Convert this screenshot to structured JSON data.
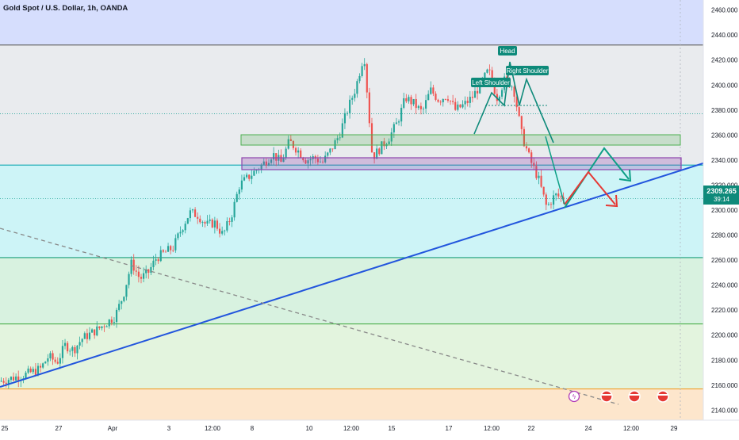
{
  "header": {
    "title": "Gold Spot / U.S. Dollar, 1h, OANDA"
  },
  "price_label": {
    "price": "2309.265",
    "countdown": "39:14"
  },
  "colors": {
    "zone_top": "#d6defd",
    "zone_upper": "#e9ebee",
    "zone_cyan": "#cdf4f7",
    "zone_green": "#d8f2e0",
    "zone_lightgreen": "#e3f4de",
    "zone_orange": "#fde6cc",
    "line_top": "#6b6b6b",
    "line_cyan": "#22b0b8",
    "line_green": "#1a9e7a",
    "line_lightgreen": "#4cae4c",
    "line_orange": "#f0a030",
    "trendline": "#2255dd",
    "dashed_line": "#888888",
    "up_candle": "#26a69a",
    "down_candle": "#ef5350",
    "supply_box": "#8e44ad",
    "demand_box": "#4caf50",
    "arrow_green": "#0e9f86",
    "arrow_red": "#e53935",
    "price_label_bg": "#0e8a7a",
    "annotation_bg": "#0e8a7a"
  },
  "chart_data": {
    "type": "candlestick",
    "title": "Gold Spot / U.S. Dollar, 1h, OANDA",
    "y_ticks": [
      "2140.000",
      "2160.000",
      "2180.000",
      "2200.000",
      "2220.000",
      "2240.000",
      "2260.000",
      "2280.000",
      "2300.000",
      "2320.000",
      "2340.000",
      "2360.000",
      "2380.000",
      "2400.000",
      "2420.000",
      "2440.000",
      "2460.000"
    ],
    "x_ticks": [
      "25",
      "27",
      "Apr",
      "3",
      "12:00",
      "8",
      "10",
      "12:00",
      "15",
      "17",
      "12:00",
      "22",
      "24",
      "12:00",
      "29"
    ],
    "ylim": [
      2132,
      2468
    ],
    "last_price": 2309.265,
    "price_path": [
      [
        0,
        2163
      ],
      [
        3,
        2168
      ],
      [
        5,
        2173
      ],
      [
        6,
        2183
      ],
      [
        7,
        2178
      ],
      [
        8,
        2192
      ],
      [
        9,
        2188
      ],
      [
        10,
        2197
      ],
      [
        12,
        2205
      ],
      [
        14,
        2215
      ],
      [
        15,
        2232
      ],
      [
        16,
        2258
      ],
      [
        17,
        2245
      ],
      [
        18,
        2250
      ],
      [
        19,
        2262
      ],
      [
        21,
        2270
      ],
      [
        22,
        2285
      ],
      [
        23,
        2298
      ],
      [
        24,
        2296
      ],
      [
        25,
        2288
      ],
      [
        26,
        2290
      ],
      [
        27,
        2280
      ],
      [
        28,
        2295
      ],
      [
        29,
        2320
      ],
      [
        31,
        2332
      ],
      [
        32,
        2338
      ],
      [
        33,
        2345
      ],
      [
        34,
        2338
      ],
      [
        35,
        2355
      ],
      [
        36,
        2348
      ],
      [
        37,
        2340
      ],
      [
        38,
        2342
      ],
      [
        39,
        2338
      ],
      [
        40,
        2348
      ],
      [
        41,
        2360
      ],
      [
        42,
        2380
      ],
      [
        43,
        2398
      ],
      [
        44,
        2425
      ],
      [
        45,
        2342
      ],
      [
        46,
        2350
      ],
      [
        47,
        2358
      ],
      [
        48,
        2370
      ],
      [
        49,
        2390
      ],
      [
        50,
        2385
      ],
      [
        51,
        2378
      ],
      [
        52,
        2396
      ],
      [
        53,
        2388
      ],
      [
        54,
        2392
      ],
      [
        55,
        2380
      ],
      [
        56,
        2384
      ],
      [
        57,
        2390
      ],
      [
        58,
        2400
      ],
      [
        59,
        2412
      ],
      [
        60,
        2390
      ],
      [
        61,
        2405
      ],
      [
        62,
        2398
      ],
      [
        63,
        2360
      ],
      [
        64,
        2340
      ],
      [
        65,
        2325
      ],
      [
        66,
        2302
      ],
      [
        67,
        2312
      ],
      [
        68,
        2309.265
      ]
    ],
    "zones": [
      {
        "from": 2432,
        "to": 2468
      },
      {
        "from": 2336,
        "to": 2432
      },
      {
        "from": 2262,
        "to": 2336
      },
      {
        "from": 2209,
        "to": 2262
      },
      {
        "from": 2157,
        "to": 2209
      },
      {
        "from": 2132,
        "to": 2157
      }
    ],
    "horizontal_levels": [
      2432,
      2336,
      2262,
      2209,
      2157
    ],
    "dotted_levels": [
      2377,
      2309.265
    ],
    "annotations": [
      "Head",
      "Left Shoulder",
      "Right Shoulder"
    ]
  }
}
